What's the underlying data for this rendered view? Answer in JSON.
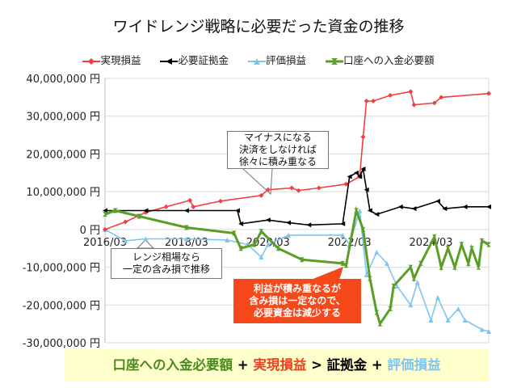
{
  "chart_data": {
    "type": "line",
    "title": "ワイドレンジ戦略に必要だった資金の推移",
    "ylim": [
      -30000000,
      40000000
    ],
    "yticks": [
      "40,000,000 円",
      "30,000,000 円",
      "20,000,000 円",
      "10,000,000 円",
      "0 円",
      "-10,000,000 円",
      "-20,000,000 円",
      "-30,000,000 円"
    ],
    "ytick_values": [
      40000000,
      30000000,
      20000000,
      10000000,
      0,
      -10000000,
      -20000000,
      -30000000
    ],
    "xticks": [
      "2016/03",
      "2018/03",
      "2020/03",
      "2022/03",
      "2024/03"
    ],
    "xlim": [
      "2016/03",
      "2025/08"
    ],
    "grid": true,
    "legend_position": "top",
    "series": [
      {
        "name": "実現損益",
        "color": "#f04040",
        "marker": "diamond",
        "points": [
          [
            "2016/03",
            0
          ],
          [
            "2016/09",
            2000000
          ],
          [
            "2017/03",
            4500000
          ],
          [
            "2017/09",
            6000000
          ],
          [
            "2018/04",
            7700000
          ],
          [
            "2018/05",
            6000000
          ],
          [
            "2019/01",
            7500000
          ],
          [
            "2020/01",
            9000000
          ],
          [
            "2020/03",
            10500000
          ],
          [
            "2020/10",
            11000000
          ],
          [
            "2020/12",
            10300000
          ],
          [
            "2021/06",
            11000000
          ],
          [
            "2022/02",
            12000000
          ],
          [
            "2022/06",
            14000000
          ],
          [
            "2022/07",
            24500000
          ],
          [
            "2022/08",
            34000000
          ],
          [
            "2022/10",
            34000000
          ],
          [
            "2023/03",
            35500000
          ],
          [
            "2023/09",
            36500000
          ],
          [
            "2023/10",
            33000000
          ],
          [
            "2024/04",
            33500000
          ],
          [
            "2024/06",
            35000000
          ],
          [
            "2025/08",
            36000000
          ]
        ]
      },
      {
        "name": "必要証拠金",
        "color": "#000000",
        "marker": "triangle-left",
        "points": [
          [
            "2016/03",
            5000000
          ],
          [
            "2017/03",
            5000000
          ],
          [
            "2018/03",
            5000000
          ],
          [
            "2019/06",
            5000000
          ],
          [
            "2019/07",
            1500000
          ],
          [
            "2020/03",
            2500000
          ],
          [
            "2020/09",
            1800000
          ],
          [
            "2021/03",
            1200000
          ],
          [
            "2022/01",
            1500000
          ],
          [
            "2022/03",
            14000000
          ],
          [
            "2022/05",
            15000000
          ],
          [
            "2022/06",
            14000000
          ],
          [
            "2022/07",
            16000000
          ],
          [
            "2022/08",
            10500000
          ],
          [
            "2022/09",
            5000000
          ],
          [
            "2022/11",
            4000000
          ],
          [
            "2023/06",
            6000000
          ],
          [
            "2023/10",
            5500000
          ],
          [
            "2024/05",
            7500000
          ],
          [
            "2024/07",
            5500000
          ],
          [
            "2025/01",
            6000000
          ],
          [
            "2025/08",
            6000000
          ]
        ]
      },
      {
        "name": "評価損益",
        "color": "#80c4f0",
        "marker": "triangle",
        "points": [
          [
            "2016/03",
            0
          ],
          [
            "2016/09",
            -3000000
          ],
          [
            "2017/03",
            -2500000
          ],
          [
            "2018/03",
            -2500000
          ],
          [
            "2019/03",
            -2800000
          ],
          [
            "2019/09",
            -4000000
          ],
          [
            "2020/01",
            -7300000
          ],
          [
            "2020/03",
            -4000000
          ],
          [
            "2020/09",
            -1500000
          ],
          [
            "2022/01",
            -1500000
          ],
          [
            "2022/03",
            -4000000
          ],
          [
            "2022/06",
            5000000
          ],
          [
            "2022/08",
            -12000000
          ],
          [
            "2022/11",
            -6000000
          ],
          [
            "2023/02",
            -9000000
          ],
          [
            "2023/05",
            -15000000
          ],
          [
            "2023/09",
            -20000000
          ],
          [
            "2023/11",
            -14000000
          ],
          [
            "2024/03",
            -24000000
          ],
          [
            "2024/05",
            -18000000
          ],
          [
            "2024/08",
            -24000000
          ],
          [
            "2024/11",
            -21000000
          ],
          [
            "2025/01",
            -24000000
          ],
          [
            "2025/06",
            -26500000
          ],
          [
            "2025/08",
            -27000000
          ]
        ]
      },
      {
        "name": "口座への入金必要額",
        "color": "#5a9e28",
        "marker": "hourglass",
        "points": [
          [
            "2016/03",
            4000000
          ],
          [
            "2016/06",
            5000000
          ],
          [
            "2017/01",
            3500000
          ],
          [
            "2018/03",
            500000
          ],
          [
            "2019/05",
            -1000000
          ],
          [
            "2019/07",
            -5000000
          ],
          [
            "2019/11",
            -4000000
          ],
          [
            "2020/01",
            -500000
          ],
          [
            "2020/06",
            -5000000
          ],
          [
            "2021/01",
            -8000000
          ],
          [
            "2022/01",
            -9000000
          ],
          [
            "2022/02",
            -9500000
          ],
          [
            "2022/05",
            5000000
          ],
          [
            "2022/07",
            0
          ],
          [
            "2022/09",
            -13000000
          ],
          [
            "2022/11",
            -22000000
          ],
          [
            "2022/12",
            -25000000
          ],
          [
            "2023/03",
            -21000000
          ],
          [
            "2023/04",
            -15000000
          ],
          [
            "2023/09",
            -10000000
          ],
          [
            "2023/10",
            -13000000
          ],
          [
            "2023/12",
            -9000000
          ],
          [
            "2024/04",
            -2000000
          ],
          [
            "2024/06",
            -10000000
          ],
          [
            "2024/08",
            -5000000
          ],
          [
            "2024/10",
            -10000000
          ],
          [
            "2024/12",
            -4000000
          ],
          [
            "2025/02",
            -9000000
          ],
          [
            "2025/03",
            -5000000
          ],
          [
            "2025/05",
            -10000000
          ],
          [
            "2025/06",
            -3000000
          ],
          [
            "2025/08",
            -4000000
          ]
        ]
      }
    ],
    "annotations": {
      "accumulate": [
        "マイナスになる",
        "決済をしなければ",
        "徐々に積み重なる"
      ],
      "range": [
        "レンジ相場なら",
        "一定の含み損で推移"
      ],
      "decrease": [
        "利益が積み重なるが",
        "含み損は一定なので、",
        "必要資金は減少する"
      ]
    },
    "footer": {
      "a": "口座への入金必要額",
      "plus1": " + ",
      "b": "実現損益",
      "gt": " > ",
      "c": "証拠金",
      "plus2": " + ",
      "d": "評価損益"
    }
  }
}
